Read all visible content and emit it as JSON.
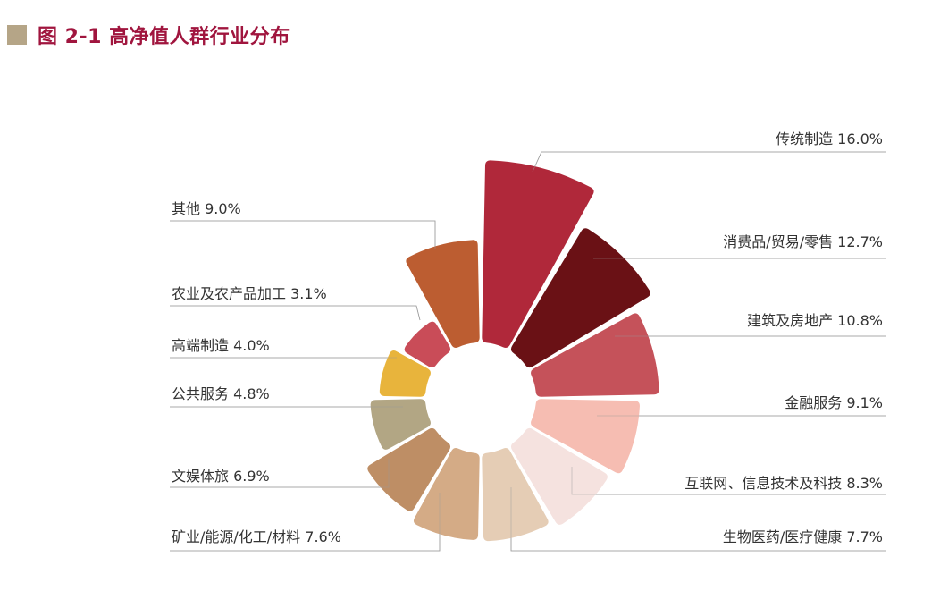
{
  "title": "图 2-1  高净值人群行业分布",
  "colors": {
    "title": "#a0153e",
    "title_square": "#b5a587"
  },
  "chart_data": {
    "type": "pie",
    "variant": "radial-bar (nightingale rose)",
    "title": "图 2-1  高净值人群行业分布",
    "unit": "%",
    "slices": [
      {
        "name": "传统制造",
        "value": 16.0,
        "label": "传统制造 16.0%",
        "color": "#b0283a"
      },
      {
        "name": "消费品/贸易/零售",
        "value": 12.7,
        "label": "消费品/贸易/零售 12.7%",
        "color": "#6a1115"
      },
      {
        "name": "建筑及房地产",
        "value": 10.8,
        "label": "建筑及房地产 10.8%",
        "color": "#c5525a"
      },
      {
        "name": "金融服务",
        "value": 9.1,
        "label": "金融服务 9.1%",
        "color": "#f6bdb2"
      },
      {
        "name": "互联网、信息技术及科技",
        "value": 8.3,
        "label": "互联网、信息技术及科技 8.3%",
        "color": "#f5e2df"
      },
      {
        "name": "生物医药/医疗健康",
        "value": 7.7,
        "label": "生物医药/医疗健康 7.7%",
        "color": "#e5cdb5"
      },
      {
        "name": "矿业/能源/化工/材料",
        "value": 7.6,
        "label": "矿业/能源/化工/材料 7.6%",
        "color": "#d4ab86"
      },
      {
        "name": "文娱体旅",
        "value": 6.9,
        "label": "文娱体旅 6.9%",
        "color": "#be8e65"
      },
      {
        "name": "公共服务",
        "value": 4.8,
        "label": "公共服务 4.8%",
        "color": "#b2a684"
      },
      {
        "name": "高端制造",
        "value": 4.0,
        "label": "高端制造 4.0%",
        "color": "#e8b43c"
      },
      {
        "name": "农业及农产品加工",
        "value": 3.1,
        "label": "农业及农产品加工 3.1%",
        "color": "#c94c58"
      },
      {
        "name": "其他",
        "value": 9.0,
        "label": "其他 9.0%",
        "color": "#bc5d31"
      }
    ]
  }
}
